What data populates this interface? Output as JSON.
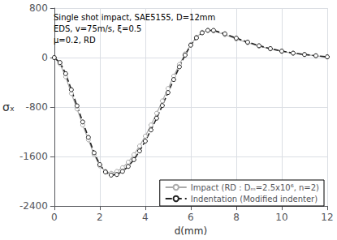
{
  "chart_data": {
    "type": "line",
    "annotation": "Single shot impact, SAE5155, D=12mm\nEDS, v=75m/s, ξ=0.5\nμ=0.2, RD",
    "xlabel": "d(mm)",
    "ylabel": "σₓ",
    "x": [
      0.0,
      0.25,
      0.5,
      0.75,
      1.0,
      1.25,
      1.5,
      1.75,
      2.0,
      2.25,
      2.5,
      2.75,
      3.0,
      3.25,
      3.5,
      3.75,
      4.0,
      4.25,
      4.5,
      4.75,
      5.0,
      5.25,
      5.5,
      5.75,
      6.0,
      6.25,
      6.5,
      6.75,
      7.0,
      7.5,
      8.0,
      8.5,
      9.0,
      9.5,
      10.0,
      10.5,
      11.0,
      11.5,
      12.0
    ],
    "series": [
      {
        "name": "Impact (RD : Dₘ=2.5x10⁶, n=2)",
        "color": "#aaaaaa",
        "line_style": "solid",
        "marker": "circle",
        "values": [
          0,
          -100,
          -310,
          -580,
          -830,
          -1090,
          -1330,
          -1570,
          -1750,
          -1840,
          -1870,
          -1840,
          -1780,
          -1690,
          -1570,
          -1430,
          -1270,
          -1090,
          -900,
          -700,
          -500,
          -300,
          -110,
          60,
          210,
          330,
          410,
          440,
          430,
          370,
          300,
          240,
          185,
          140,
          100,
          70,
          50,
          28,
          10
        ]
      },
      {
        "name": "Indentation (Modified indenter)",
        "color": "#222222",
        "line_style": "dashed",
        "marker": "circle",
        "values": [
          0,
          -80,
          -260,
          -520,
          -780,
          -1040,
          -1290,
          -1540,
          -1730,
          -1850,
          -1900,
          -1890,
          -1840,
          -1760,
          -1650,
          -1510,
          -1350,
          -1170,
          -980,
          -775,
          -565,
          -355,
          -150,
          40,
          200,
          320,
          400,
          440,
          440,
          385,
          315,
          250,
          192,
          145,
          105,
          72,
          50,
          30,
          12
        ]
      }
    ],
    "xlim": [
      0,
      12
    ],
    "ylim": [
      -2400,
      800
    ],
    "xticks": [
      0,
      2,
      4,
      6,
      8,
      10,
      12
    ],
    "yticks": [
      -2400,
      -1600,
      -800,
      0,
      800
    ],
    "grid": true,
    "legend": "lower right"
  }
}
